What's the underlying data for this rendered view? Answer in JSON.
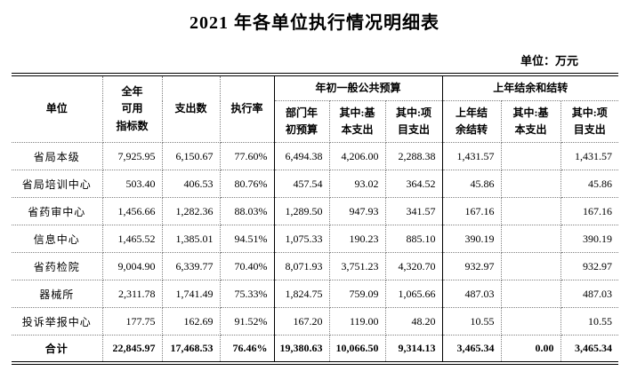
{
  "title": "2021 年各单位执行情况明细表",
  "unit_note": "单位：万元",
  "table": {
    "columns": {
      "unit": "单位",
      "annual_available": "全年\n可用\n指标数",
      "expenditure": "支出数",
      "execution_rate": "执行率",
      "group1": "年初一般公共预算",
      "group1_sub": [
        "部门年\n初预算",
        "其中:基\n本支出",
        "其中:项\n目支出"
      ],
      "group2": "上年结余和结转",
      "group2_sub": [
        "上年结\n余结转",
        "其中:基\n本支出",
        "其中:项\n目支出"
      ]
    },
    "rows": [
      {
        "unit": "省局本级",
        "total": false,
        "values": [
          "7,925.95",
          "6,150.67",
          "77.60%",
          "6,494.38",
          "4,206.00",
          "2,288.38",
          "1,431.57",
          "",
          "1,431.57"
        ]
      },
      {
        "unit": "省局培训中心",
        "total": false,
        "values": [
          "503.40",
          "406.53",
          "80.76%",
          "457.54",
          "93.02",
          "364.52",
          "45.86",
          "",
          "45.86"
        ]
      },
      {
        "unit": "省药审中心",
        "total": false,
        "values": [
          "1,456.66",
          "1,282.36",
          "88.03%",
          "1,289.50",
          "947.93",
          "341.57",
          "167.16",
          "",
          "167.16"
        ]
      },
      {
        "unit": "信息中心",
        "total": false,
        "values": [
          "1,465.52",
          "1,385.01",
          "94.51%",
          "1,075.33",
          "190.23",
          "885.10",
          "390.19",
          "",
          "390.19"
        ]
      },
      {
        "unit": "省药检院",
        "total": false,
        "values": [
          "9,004.90",
          "6,339.77",
          "70.40%",
          "8,071.93",
          "3,751.23",
          "4,320.70",
          "932.97",
          "",
          "932.97"
        ]
      },
      {
        "unit": "器械所",
        "total": false,
        "values": [
          "2,311.78",
          "1,741.49",
          "75.33%",
          "1,824.75",
          "759.09",
          "1,065.66",
          "487.03",
          "",
          "487.03"
        ]
      },
      {
        "unit": "投诉举报中心",
        "total": false,
        "values": [
          "177.75",
          "162.69",
          "91.52%",
          "167.20",
          "119.00",
          "48.20",
          "10.55",
          "",
          "10.55"
        ]
      },
      {
        "unit": "合计",
        "total": true,
        "values": [
          "22,845.97",
          "17,468.53",
          "76.46%",
          "19,380.63",
          "10,066.50",
          "9,314.13",
          "3,465.34",
          "0.00",
          "3,465.34"
        ]
      }
    ]
  }
}
